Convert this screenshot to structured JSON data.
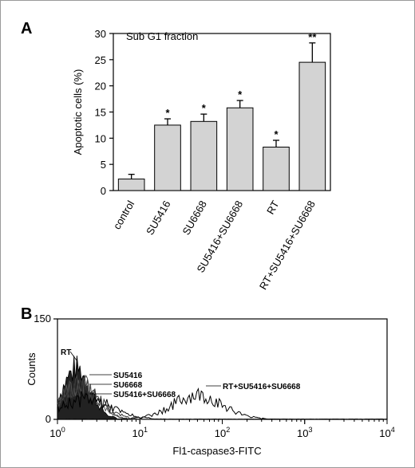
{
  "panels": {
    "a_letter": "A",
    "b_letter": "B"
  },
  "chart_data": [
    {
      "type": "bar",
      "annotation": "Sub G1 fraction",
      "ylabel": "Apoptotic cells (%)",
      "xlabel": "",
      "ylim": [
        0,
        30
      ],
      "yticks": [
        "0",
        "5",
        "10",
        "15",
        "20",
        "25",
        "30"
      ],
      "categories": [
        "control",
        "SU5416",
        "SU6668",
        "SU5416+SU6668",
        "RT",
        "RT+SU5416+SU6668"
      ],
      "values": [
        2.2,
        12.5,
        13.2,
        15.8,
        8.3,
        24.5
      ],
      "errors": [
        0.9,
        1.2,
        1.4,
        1.4,
        1.3,
        3.7
      ],
      "significance": [
        "",
        "*",
        "*",
        "*",
        "*",
        "**"
      ],
      "bar_color": "#d3d3d3"
    },
    {
      "type": "histogram",
      "ylabel": "Counts",
      "xlabel": "Fl1-caspase3-FITC",
      "xscale": "log",
      "xlim": [
        1,
        10000
      ],
      "ylim": [
        0,
        150
      ],
      "xticks": [
        {
          "base": "10",
          "exp": "0"
        },
        {
          "base": "10",
          "exp": "1"
        },
        {
          "base": "10",
          "exp": "2"
        },
        {
          "base": "10",
          "exp": "3"
        },
        {
          "base": "10",
          "exp": "4"
        }
      ],
      "yticks": [
        "0",
        "150"
      ],
      "labels": [
        "RT",
        "SU5416",
        "SU6668",
        "SU5416+SU6668",
        "RT+SU5416+SU6668"
      ],
      "series": [
        {
          "name": "RT",
          "peak_x": 1.7,
          "peak_y": 75
        },
        {
          "name": "SU5416",
          "peak_x": 1.8,
          "peak_y": 55
        },
        {
          "name": "SU6668",
          "peak_x": 1.8,
          "peak_y": 50
        },
        {
          "name": "SU5416+SU6668",
          "peak_x": 1.9,
          "peak_y": 45
        },
        {
          "name": "RT+SU5416+SU6668",
          "peak_x": 50,
          "peak_y": 35
        }
      ]
    }
  ]
}
